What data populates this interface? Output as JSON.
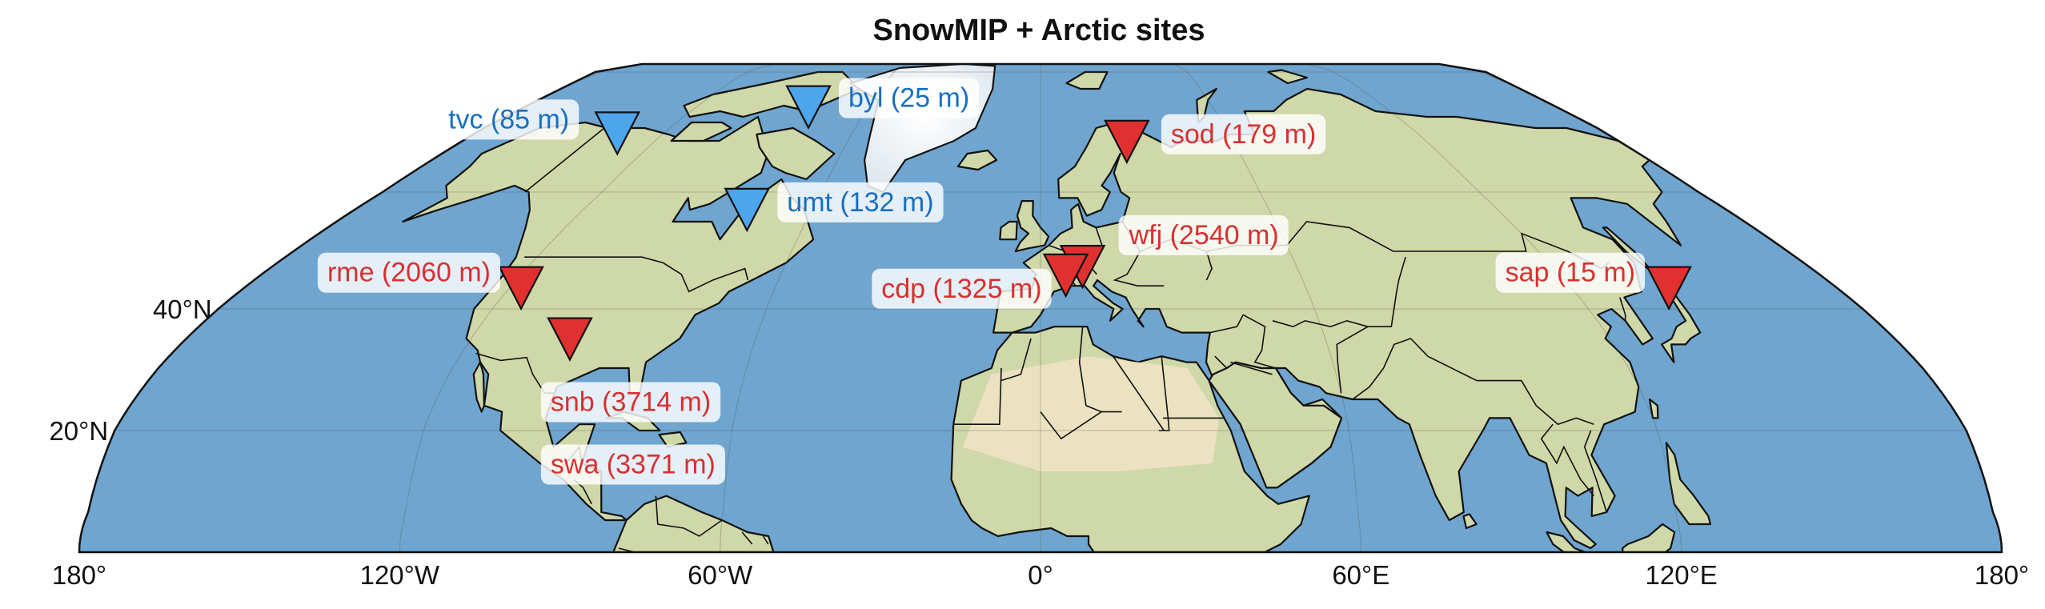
{
  "title": "SnowMIP + Arctic sites",
  "colors": {
    "ocean": "#6fa5cf",
    "land": "#cfd8a8",
    "ice": "#f4f7fa",
    "coast": "#111111",
    "arctic_marker": "#4da6ec",
    "arctic_text": "#1a6fbf",
    "snowmip_marker": "#e03030",
    "snowmip_text": "#d83030",
    "label_box": "#ffffff"
  },
  "map": {
    "projection": "Robinson-like, clipped 0°N–84°N",
    "lon_ticks": [
      {
        "lon": -180,
        "label": "180°"
      },
      {
        "lon": -120,
        "label": "120°W"
      },
      {
        "lon": -60,
        "label": "60°W"
      },
      {
        "lon": 0,
        "label": "0°"
      },
      {
        "lon": 60,
        "label": "60°E"
      },
      {
        "lon": 120,
        "label": "120°E"
      },
      {
        "lon": 180,
        "label": "180°"
      }
    ],
    "lat_ticks": [
      {
        "lat": 40,
        "label": "40°N"
      },
      {
        "lat": 20,
        "label": "20°N"
      }
    ]
  },
  "sites": [
    {
      "id": "tvc",
      "label": "tvc (85 m)",
      "group": "arctic",
      "lon": -133.5,
      "lat": 68.7,
      "label_side": "left"
    },
    {
      "id": "byl",
      "label": "byl (25 m)",
      "group": "arctic",
      "lon": -80.0,
      "lat": 73.2,
      "label_side": "right"
    },
    {
      "id": "umt",
      "label": "umt (132 m)",
      "group": "arctic",
      "lon": -76.5,
      "lat": 56.5,
      "label_side": "right"
    },
    {
      "id": "sod",
      "label": "sod (179 m)",
      "group": "snowmip",
      "lon": 26.6,
      "lat": 67.4,
      "label_side": "right"
    },
    {
      "id": "wfj",
      "label": "wfj (2540 m)",
      "group": "snowmip",
      "lon": 9.8,
      "lat": 46.8,
      "label_side": "right"
    },
    {
      "id": "cdp",
      "label": "cdp (1325 m)",
      "group": "snowmip",
      "lon": 5.8,
      "lat": 45.3,
      "label_side": "left"
    },
    {
      "id": "rme",
      "label": "rme (2060 m)",
      "group": "snowmip",
      "lon": -116.8,
      "lat": 43.1,
      "label_side": "left"
    },
    {
      "id": "snb",
      "label": "snb (3714 m)",
      "group": "snowmip",
      "lon": -107.7,
      "lat": 37.9,
      "label_side": "below"
    },
    {
      "id": "swa",
      "label": "swa (3371 m)",
      "group": "snowmip",
      "lon": -107.7,
      "lat": 37.9,
      "label_side": "below2"
    },
    {
      "id": "sap",
      "label": "sap (15 m)",
      "group": "snowmip",
      "lon": 141.3,
      "lat": 43.1,
      "label_side": "left"
    }
  ]
}
